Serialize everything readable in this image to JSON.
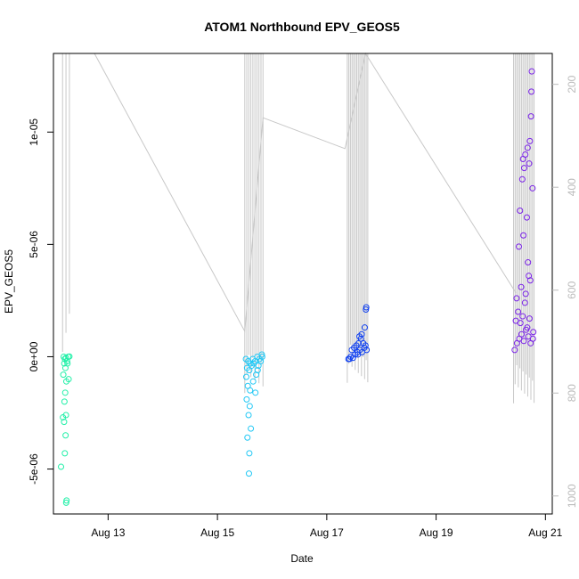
{
  "chart_data": {
    "type": "scatter",
    "title": "ATOM1 Northbound EPV_GEOS5",
    "xlabel": "Date",
    "ylabel": "EPV_GEOS5",
    "xlim": [
      "2014-08-12 00:00",
      "2014-08-21 03:00"
    ],
    "ylim": [
      -7e-06,
      1.35e-05
    ],
    "x_ticks": [
      {
        "value": "2014-08-13 00:00",
        "label": "Aug 13"
      },
      {
        "value": "2014-08-15 00:00",
        "label": "Aug 15"
      },
      {
        "value": "2014-08-17 00:00",
        "label": "Aug 17"
      },
      {
        "value": "2014-08-19 00:00",
        "label": "Aug 19"
      },
      {
        "value": "2014-08-21 00:00",
        "label": "Aug 21"
      }
    ],
    "y_ticks": [
      {
        "value": -5e-06,
        "label": "-5e-06"
      },
      {
        "value": 0,
        "label": "0e+00"
      },
      {
        "value": 5e-06,
        "label": "5e-06"
      },
      {
        "value": 1e-05,
        "label": "1e-05"
      }
    ],
    "secondary_axis": {
      "side": "right",
      "reversed": true,
      "range": [
        1035,
        140
      ],
      "ticks": [
        {
          "value": 200,
          "label": "200"
        },
        {
          "value": 400,
          "label": "400"
        },
        {
          "value": 600,
          "label": "600"
        },
        {
          "value": 800,
          "label": "800"
        },
        {
          "value": 1000,
          "label": "1000"
        }
      ],
      "color": "#bbbbbb"
    },
    "flight_track": [
      [
        "2014-08-12 18:00",
        140
      ],
      [
        "2014-08-15 12:00",
        680
      ],
      [
        "2014-08-15 20:00",
        265
      ],
      [
        "2014-08-17 08:00",
        325
      ],
      [
        "2014-08-17 17:00",
        140
      ],
      [
        "2014-08-20 11:00",
        605
      ]
    ],
    "profile_groups": [
      {
        "start": "2014-08-12 04:00",
        "end": "2014-08-12 07:00",
        "count": 3,
        "top": 140,
        "bottom": 720
      },
      {
        "start": "2014-08-15 12:00",
        "end": "2014-08-15 20:00",
        "count": 10,
        "top": 140,
        "bottom": 800
      },
      {
        "start": "2014-08-17 09:00",
        "end": "2014-08-17 18:00",
        "count": 14,
        "top": 140,
        "bottom": 780
      },
      {
        "start": "2014-08-20 10:00",
        "end": "2014-08-20 19:00",
        "count": 14,
        "top": 140,
        "bottom": 820
      }
    ],
    "series": [
      {
        "color": "#22f0a8",
        "points": [
          [
            "2014-08-12 04:30",
            0
          ],
          [
            "2014-08-12 05:00",
            -1e-07
          ],
          [
            "2014-08-12 05:30",
            -5e-08
          ],
          [
            "2014-08-12 06:00",
            -2e-07
          ],
          [
            "2014-08-12 06:30",
            0
          ],
          [
            "2014-08-12 07:00",
            1e-08
          ],
          [
            "2014-08-12 04:45",
            -3e-07
          ],
          [
            "2014-08-12 05:15",
            -5e-07
          ],
          [
            "2014-08-12 04:20",
            -8e-07
          ],
          [
            "2014-08-12 05:40",
            -1.1e-06
          ],
          [
            "2014-08-12 06:40",
            -1e-06
          ],
          [
            "2014-08-12 05:10",
            -1.6e-06
          ],
          [
            "2014-08-12 04:50",
            -2e-06
          ],
          [
            "2014-08-12 05:30",
            -2.6e-06
          ],
          [
            "2014-08-12 04:10",
            -2.7e-06
          ],
          [
            "2014-08-12 04:40",
            -2.9e-06
          ],
          [
            "2014-08-12 05:20",
            -3.5e-06
          ],
          [
            "2014-08-12 05:00",
            -4.3e-06
          ],
          [
            "2014-08-12 03:20",
            -4.9e-06
          ],
          [
            "2014-08-12 05:35",
            -6.5e-06
          ],
          [
            "2014-08-12 05:45",
            -6.4e-06
          ],
          [
            "2014-08-12 06:10",
            -3e-07
          ]
        ]
      },
      {
        "color": "#22c8f5",
        "points": [
          [
            "2014-08-15 12:30",
            -1e-07
          ],
          [
            "2014-08-15 13:30",
            -2e-07
          ],
          [
            "2014-08-15 14:30",
            -3e-07
          ],
          [
            "2014-08-15 15:30",
            -1e-07
          ],
          [
            "2014-08-15 16:30",
            -2e-07
          ],
          [
            "2014-08-15 17:30",
            0
          ],
          [
            "2014-08-15 18:30",
            -1e-07
          ],
          [
            "2014-08-15 19:30",
            1e-07
          ],
          [
            "2014-08-15 13:00",
            -5e-07
          ],
          [
            "2014-08-15 14:00",
            -6e-07
          ],
          [
            "2014-08-15 15:00",
            -4e-07
          ],
          [
            "2014-08-15 16:00",
            -3e-07
          ],
          [
            "2014-08-15 17:00",
            -8e-07
          ],
          [
            "2014-08-15 18:00",
            -4e-07
          ],
          [
            "2014-08-15 19:00",
            -2e-07
          ],
          [
            "2014-08-15 12:40",
            -9e-07
          ],
          [
            "2014-08-15 13:20",
            -1.3e-06
          ],
          [
            "2014-08-15 14:20",
            -1.5e-06
          ],
          [
            "2014-08-15 15:40",
            -1.1e-06
          ],
          [
            "2014-08-15 12:50",
            -1.9e-06
          ],
          [
            "2014-08-15 14:10",
            -2.2e-06
          ],
          [
            "2014-08-15 13:40",
            -2.6e-06
          ],
          [
            "2014-08-15 14:40",
            -3.2e-06
          ],
          [
            "2014-08-15 13:10",
            -3.6e-06
          ],
          [
            "2014-08-15 14:00",
            -4.3e-06
          ],
          [
            "2014-08-15 13:50",
            -5.2e-06
          ],
          [
            "2014-08-15 16:40",
            -1.6e-06
          ],
          [
            "2014-08-15 17:40",
            -6e-07
          ],
          [
            "2014-08-15 19:40",
            0
          ]
        ]
      },
      {
        "color": "#1040f0",
        "points": [
          [
            "2014-08-17 09:30",
            -1e-07
          ],
          [
            "2014-08-17 10:30",
            0
          ],
          [
            "2014-08-17 11:30",
            -5e-08
          ],
          [
            "2014-08-17 12:30",
            1e-07
          ],
          [
            "2014-08-17 13:30",
            2e-07
          ],
          [
            "2014-08-17 14:30",
            3e-07
          ],
          [
            "2014-08-17 15:30",
            2e-07
          ],
          [
            "2014-08-17 16:30",
            4e-07
          ],
          [
            "2014-08-17 17:30",
            3e-07
          ],
          [
            "2014-08-17 11:00",
            3e-07
          ],
          [
            "2014-08-17 12:00",
            4e-07
          ],
          [
            "2014-08-17 13:00",
            5e-07
          ],
          [
            "2014-08-17 14:00",
            6e-07
          ],
          [
            "2014-08-17 15:00",
            8e-07
          ],
          [
            "2014-08-17 16:00",
            6e-07
          ],
          [
            "2014-08-17 17:00",
            5e-07
          ],
          [
            "2014-08-17 14:20",
            9e-07
          ],
          [
            "2014-08-17 15:20",
            1e-06
          ],
          [
            "2014-08-17 16:40",
            1.3e-06
          ],
          [
            "2014-08-17 17:10",
            2.1e-06
          ],
          [
            "2014-08-17 17:20",
            2.2e-06
          ],
          [
            "2014-08-17 13:40",
            1e-07
          ],
          [
            "2014-08-17 10:00",
            -1e-07
          ]
        ]
      },
      {
        "color": "#7a22e8",
        "points": [
          [
            "2014-08-20 10:30",
            3e-07
          ],
          [
            "2014-08-20 11:30",
            6e-07
          ],
          [
            "2014-08-20 12:30",
            8e-07
          ],
          [
            "2014-08-20 13:30",
            1e-06
          ],
          [
            "2014-08-20 14:30",
            7e-07
          ],
          [
            "2014-08-20 15:30",
            1.2e-06
          ],
          [
            "2014-08-20 16:30",
            9e-07
          ],
          [
            "2014-08-20 17:30",
            6e-07
          ],
          [
            "2014-08-20 18:30",
            8e-07
          ],
          [
            "2014-08-20 11:00",
            1.6e-06
          ],
          [
            "2014-08-20 12:00",
            2e-06
          ],
          [
            "2014-08-20 13:00",
            1.5e-06
          ],
          [
            "2014-08-20 14:00",
            1.8e-06
          ],
          [
            "2014-08-20 15:00",
            2.4e-06
          ],
          [
            "2014-08-20 16:00",
            1.3e-06
          ],
          [
            "2014-08-20 17:00",
            1.7e-06
          ],
          [
            "2014-08-20 11:20",
            2.6e-06
          ],
          [
            "2014-08-20 13:20",
            3.1e-06
          ],
          [
            "2014-08-20 15:20",
            2.8e-06
          ],
          [
            "2014-08-20 17:20",
            3.4e-06
          ],
          [
            "2014-08-20 12:20",
            4.9e-06
          ],
          [
            "2014-08-20 14:20",
            5.4e-06
          ],
          [
            "2014-08-20 16:20",
            4.2e-06
          ],
          [
            "2014-08-20 12:50",
            6.5e-06
          ],
          [
            "2014-08-20 15:50",
            6.2e-06
          ],
          [
            "2014-08-20 13:50",
            7.9e-06
          ],
          [
            "2014-08-20 14:40",
            8.4e-06
          ],
          [
            "2014-08-20 16:50",
            8.6e-06
          ],
          [
            "2014-08-20 15:10",
            9e-06
          ],
          [
            "2014-08-20 16:10",
            9.3e-06
          ],
          [
            "2014-08-20 17:10",
            9.6e-06
          ],
          [
            "2014-08-20 17:40",
            1.07e-05
          ],
          [
            "2014-08-20 17:50",
            1.18e-05
          ],
          [
            "2014-08-20 18:00",
            1.27e-05
          ],
          [
            "2014-08-20 14:10",
            8.8e-06
          ],
          [
            "2014-08-20 18:20",
            7.5e-06
          ],
          [
            "2014-08-20 16:40",
            3.6e-06
          ],
          [
            "2014-08-20 18:40",
            1.1e-06
          ]
        ]
      }
    ]
  }
}
